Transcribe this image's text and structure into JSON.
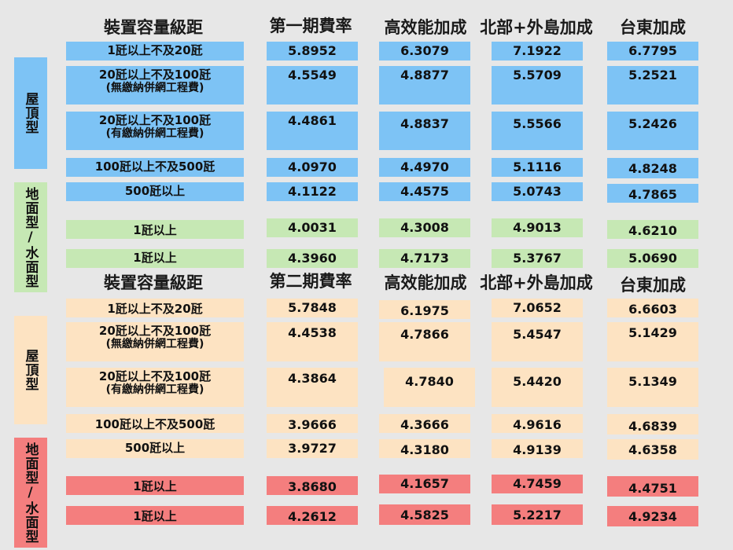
{
  "top": {
    "headers": [
      "裝置容量級距",
      "第一期費率",
      "高效能加成",
      "北部+外島加成",
      "台東加成"
    ],
    "groups": {
      "rooftop": "屋頂型",
      "ground": "地面型/水面型"
    },
    "rows": [
      {
        "label": "1瓩以上不及20瓩",
        "sub": "",
        "values": [
          "5.8952",
          "6.3079",
          "7.1922",
          "6.7795"
        ]
      },
      {
        "label": "20瓩以上不及100瓩",
        "sub": "(無繳納併網工程費)",
        "values": [
          "4.5549",
          "4.8877",
          "5.5709",
          "5.2521"
        ]
      },
      {
        "label": "20瓩以上不及100瓩",
        "sub": "(有繳納併網工程費)",
        "values": [
          "4.4861",
          "4.8837",
          "5.5566",
          "5.2426"
        ]
      },
      {
        "label": "100瓩以上不及500瓩",
        "sub": "",
        "values": [
          "4.0970",
          "4.4970",
          "5.1116",
          "4.8248"
        ]
      },
      {
        "label": "500瓩以上",
        "sub": "",
        "values": [
          "4.1122",
          "4.4575",
          "5.0743",
          "4.7865"
        ]
      },
      {
        "label": "1瓩以上",
        "sub": "",
        "values": [
          "4.0031",
          "4.3008",
          "4.9013",
          "4.6210"
        ]
      },
      {
        "label": "1瓩以上",
        "sub": "",
        "values": [
          "4.3960",
          "4.7173",
          "5.3767",
          "5.0690"
        ]
      }
    ]
  },
  "bottom": {
    "headers": [
      "裝置容量級距",
      "第二期費率",
      "高效能加成",
      "北部+外島加成",
      "台東加成"
    ],
    "groups": {
      "rooftop": "屋頂型",
      "ground": "地面型/水面型"
    },
    "rows": [
      {
        "label": "1瓩以上不及20瓩",
        "sub": "",
        "values": [
          "5.7848",
          "6.1975",
          "7.0652",
          "6.6603"
        ]
      },
      {
        "label": "20瓩以上不及100瓩",
        "sub": "(無繳納併網工程費)",
        "values": [
          "4.4538",
          "4.7866",
          "5.4547",
          "5.1429"
        ]
      },
      {
        "label": "20瓩以上不及100瓩",
        "sub": "(有繳納併網工程費)",
        "values": [
          "4.3864",
          "4.7840",
          "5.4420",
          "5.1349"
        ]
      },
      {
        "label": "100瓩以上不及500瓩",
        "sub": "",
        "values": [
          "3.9666",
          "4.3666",
          "4.9616",
          "4.6839"
        ]
      },
      {
        "label": "500瓩以上",
        "sub": "",
        "values": [
          "3.9727",
          "4.3180",
          "4.9139",
          "4.6358"
        ]
      },
      {
        "label": "1瓩以上",
        "sub": "",
        "values": [
          "3.8680",
          "4.1657",
          "4.7459",
          "4.4751"
        ]
      },
      {
        "label": "1瓩以上",
        "sub": "",
        "values": [
          "4.2612",
          "4.5825",
          "5.2217",
          "4.9234"
        ]
      }
    ]
  },
  "colors": {
    "background": "#e7e7e7",
    "blue": "#7dc3f5",
    "green": "#c6e8b4",
    "peach": "#fde3c2",
    "red": "#f47e7e"
  }
}
